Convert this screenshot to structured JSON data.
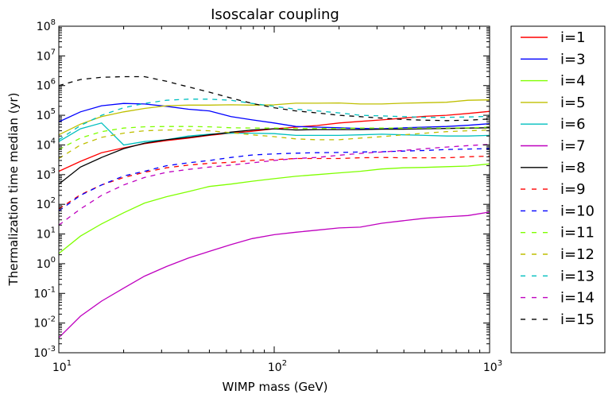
{
  "chart_data": {
    "type": "line",
    "title": "Isoscalar coupling",
    "xlabel": "WIMP mass (GeV)",
    "ylabel": "Thermalization time median (yr)",
    "xscale": "log",
    "yscale": "log",
    "xlim": [
      10,
      1000
    ],
    "ylim": [
      0.001,
      100000000
    ],
    "xticks": [
      {
        "value": 10,
        "base": "10",
        "exp": "1"
      },
      {
        "value": 100,
        "base": "10",
        "exp": "2"
      },
      {
        "value": 1000,
        "base": "10",
        "exp": "3"
      }
    ],
    "yticks": [
      {
        "value": 0.001,
        "base": "10",
        "exp": "-3"
      },
      {
        "value": 0.01,
        "base": "10",
        "exp": "-2"
      },
      {
        "value": 0.1,
        "base": "10",
        "exp": "-1"
      },
      {
        "value": 1,
        "base": "10",
        "exp": "0"
      },
      {
        "value": 10,
        "base": "10",
        "exp": "1"
      },
      {
        "value": 100,
        "base": "10",
        "exp": "2"
      },
      {
        "value": 1000,
        "base": "10",
        "exp": "3"
      },
      {
        "value": 10000,
        "base": "10",
        "exp": "4"
      },
      {
        "value": 100000,
        "base": "10",
        "exp": "5"
      },
      {
        "value": 1000000,
        "base": "10",
        "exp": "6"
      },
      {
        "value": 10000000,
        "base": "10",
        "exp": "7"
      },
      {
        "value": 100000000,
        "base": "10",
        "exp": "8"
      }
    ],
    "grid": false,
    "legend_position": "outside-right",
    "x": [
      10,
      12.6,
      15.8,
      20,
      25,
      31.6,
      40,
      50,
      63,
      79,
      100,
      126,
      158,
      200,
      251,
      316,
      398,
      501,
      631,
      794,
      1000
    ],
    "series": [
      {
        "name": "i=1",
        "color": "#ff0000",
        "dash": "solid",
        "values": [
          1300,
          2800,
          5500,
          8000,
          11000,
          14000,
          17000,
          21000,
          25000,
          29000,
          35000,
          40000,
          45000,
          55000,
          62000,
          70000,
          80000,
          92000,
          100000,
          115000,
          135000
        ]
      },
      {
        "name": "i=3",
        "color": "#0000ff",
        "dash": "solid",
        "values": [
          60000,
          130000,
          210000,
          250000,
          240000,
          200000,
          160000,
          140000,
          90000,
          70000,
          55000,
          42000,
          40000,
          38000,
          36000,
          35000,
          38000,
          40000,
          42000,
          46000,
          52000
        ]
      },
      {
        "name": "i=4",
        "color": "#7fff00",
        "dash": "solid",
        "values": [
          2.2,
          8.5,
          22,
          52,
          110,
          180,
          270,
          400,
          480,
          600,
          730,
          880,
          1000,
          1150,
          1300,
          1550,
          1700,
          1750,
          1850,
          1950,
          2300
        ]
      },
      {
        "name": "i=5",
        "color": "#bfbf00",
        "dash": "solid",
        "values": [
          22000,
          50000,
          90000,
          130000,
          170000,
          210000,
          220000,
          220000,
          225000,
          220000,
          225000,
          255000,
          255000,
          260000,
          240000,
          240000,
          255000,
          265000,
          275000,
          320000,
          330000
        ]
      },
      {
        "name": "i=6",
        "color": "#00bfbf",
        "dash": "solid",
        "values": [
          13000,
          35000,
          55000,
          10000,
          13000,
          15000,
          20000,
          23000,
          25000,
          25000,
          24000,
          21000,
          21000,
          21000,
          22000,
          23000,
          22000,
          21000,
          20000,
          20000,
          21000
        ]
      },
      {
        "name": "i=7",
        "color": "#bf00bf",
        "dash": "solid",
        "values": [
          0.0032,
          0.017,
          0.055,
          0.15,
          0.38,
          0.8,
          1.55,
          2.6,
          4.4,
          7,
          9.5,
          11.5,
          13.5,
          16,
          17,
          23,
          28,
          34,
          38,
          42,
          55
        ]
      },
      {
        "name": "i=8",
        "color": "#000000",
        "dash": "solid",
        "values": [
          480,
          1800,
          3800,
          7500,
          11500,
          15000,
          18000,
          22000,
          27000,
          32000,
          35000,
          32000,
          33000,
          33000,
          33000,
          34000,
          34000,
          35000,
          36000,
          37000,
          38000
        ]
      },
      {
        "name": "i=9",
        "color": "#ff0000",
        "dash": "dashed",
        "values": [
          70,
          210,
          450,
          800,
          1200,
          1700,
          2100,
          2400,
          2600,
          3000,
          3200,
          3500,
          3500,
          3500,
          3700,
          3800,
          3700,
          3700,
          3700,
          4000,
          4200
        ]
      },
      {
        "name": "i=10",
        "color": "#0000ff",
        "dash": "dashed",
        "values": [
          60,
          200,
          450,
          900,
          1300,
          2000,
          2500,
          3000,
          3800,
          4600,
          5000,
          5300,
          5500,
          5600,
          5800,
          5900,
          6200,
          6500,
          7000,
          7300,
          7500
        ]
      },
      {
        "name": "i=11",
        "color": "#7fff00",
        "dash": "dashed",
        "values": [
          7000,
          17000,
          28000,
          37000,
          41000,
          42000,
          42000,
          41000,
          38000,
          37000,
          37000,
          36000,
          36000,
          36000,
          37000,
          37000,
          37000,
          37000,
          37000,
          38000,
          40000
        ]
      },
      {
        "name": "i=12",
        "color": "#bfbf00",
        "dash": "dashed",
        "values": [
          3500,
          10000,
          18000,
          25000,
          30000,
          32000,
          32000,
          30000,
          26000,
          22000,
          19000,
          16000,
          15000,
          15000,
          17000,
          19000,
          22000,
          25000,
          28000,
          30000,
          32000
        ]
      },
      {
        "name": "i=13",
        "color": "#00bfbf",
        "dash": "dashed",
        "values": [
          15000,
          45000,
          100000,
          180000,
          250000,
          320000,
          350000,
          350000,
          320000,
          250000,
          200000,
          160000,
          140000,
          120000,
          100000,
          95000,
          90000,
          85000,
          85000,
          88000,
          92000
        ]
      },
      {
        "name": "i=14",
        "color": "#bf00bf",
        "dash": "dashed",
        "values": [
          20,
          70,
          200,
          450,
          800,
          1200,
          1500,
          1800,
          2100,
          2500,
          3000,
          3500,
          3800,
          4500,
          5200,
          5800,
          6500,
          7500,
          8500,
          9500,
          10500
        ]
      },
      {
        "name": "i=15",
        "color": "#000000",
        "dash": "dashed",
        "values": [
          1000000,
          1600000,
          1900000,
          2000000,
          2000000,
          1400000,
          900000,
          600000,
          380000,
          250000,
          180000,
          140000,
          120000,
          100000,
          90000,
          80000,
          72000,
          68000,
          66000,
          68000,
          75000
        ]
      }
    ]
  }
}
